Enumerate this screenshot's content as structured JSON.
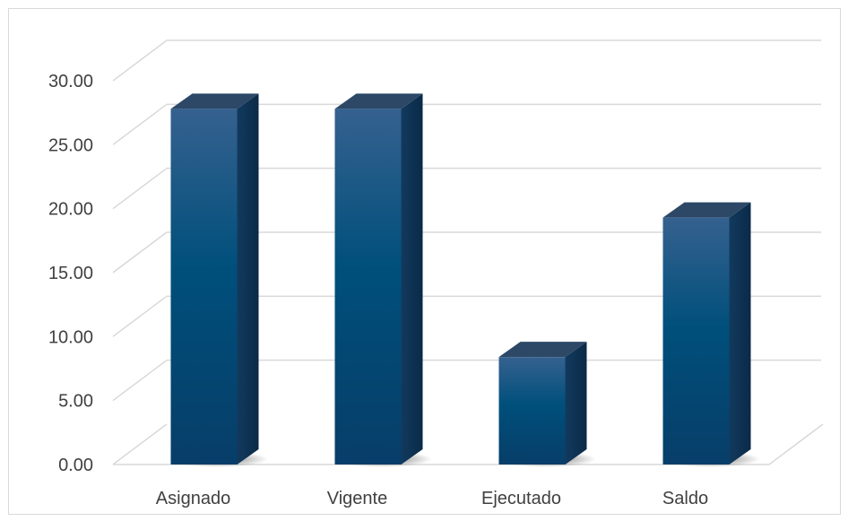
{
  "chart_data": {
    "type": "bar",
    "title": "",
    "xlabel": "",
    "ylabel": "",
    "categories": [
      "Asignado",
      "Vigente",
      "Ejecutado",
      "Saldo"
    ],
    "values": [
      27.8,
      27.8,
      8.4,
      19.3
    ],
    "ylim": [
      0,
      30
    ],
    "yticks": [
      "0.00",
      "5.00",
      "10.00",
      "15.00",
      "20.00",
      "25.00",
      "30.00"
    ],
    "grid": true,
    "legend": "none",
    "three_d": true,
    "colors": {
      "bar_top": "#2f5d8c",
      "bar_mid": "#004f7a",
      "bar_bottom": "#063f6a",
      "bar_side": "#0c2f4f",
      "bar_cap": "#2c4866",
      "grid": "#d9d9d9",
      "text": "#404040"
    }
  }
}
